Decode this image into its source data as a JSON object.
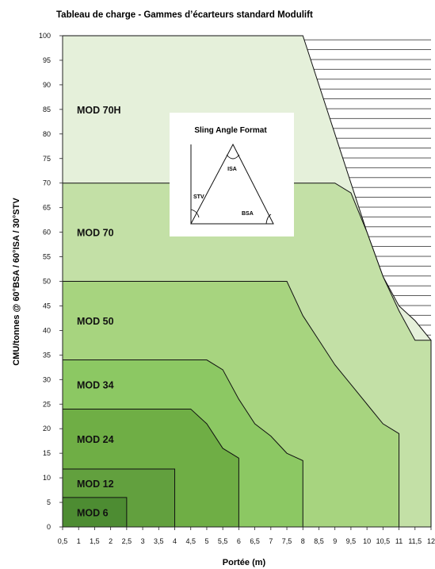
{
  "chart_data": {
    "type": "area",
    "title": "Tableau de charge - Gammes d’écarteurs standard Modulift",
    "xlabel": "Portée (m)",
    "ylabel": "CMU/tonnes @ 60°BSA / 60°ISA / 30°STV",
    "x_ticks": [
      "0,5",
      "1",
      "1,5",
      "2",
      "2,5",
      "3",
      "3,5",
      "4",
      "4,5",
      "5",
      "5,5",
      "6",
      "6,5",
      "7",
      "7,5",
      "8",
      "8,5",
      "9",
      "9,5",
      "10",
      "10,5",
      "11",
      "11,5",
      "12"
    ],
    "y_ticks": [
      "0",
      "5",
      "10",
      "15",
      "20",
      "25",
      "30",
      "35",
      "40",
      "45",
      "50",
      "55",
      "60",
      "65",
      "70",
      "75",
      "80",
      "85",
      "90",
      "95",
      "100"
    ],
    "xlim": [
      0.5,
      12
    ],
    "ylim": [
      0,
      100
    ],
    "grid": false,
    "hatched_region": "beyond MOD 70H capacity curve",
    "series": [
      {
        "name": "MOD 70H",
        "color": "#e5f0da",
        "points": [
          [
            0.5,
            100
          ],
          [
            8.0,
            100
          ],
          [
            8.5,
            90
          ],
          [
            9.0,
            80
          ],
          [
            9.5,
            70
          ],
          [
            10.0,
            60
          ],
          [
            10.5,
            51
          ],
          [
            11.0,
            45
          ],
          [
            11.5,
            42
          ],
          [
            12.0,
            38
          ],
          [
            12.0,
            0
          ]
        ]
      },
      {
        "name": "MOD 70",
        "color": "#c3e0a6",
        "points": [
          [
            0.5,
            70
          ],
          [
            9.0,
            70
          ],
          [
            9.5,
            68
          ],
          [
            10.0,
            60
          ],
          [
            10.5,
            51
          ],
          [
            11.0,
            44
          ],
          [
            11.5,
            38
          ],
          [
            12.0,
            38
          ],
          [
            12.0,
            0
          ]
        ]
      },
      {
        "name": "MOD 50",
        "color": "#a7d47f",
        "points": [
          [
            0.5,
            50
          ],
          [
            7.5,
            50
          ],
          [
            8.0,
            43
          ],
          [
            8.5,
            38
          ],
          [
            9.0,
            33
          ],
          [
            9.5,
            29
          ],
          [
            10.0,
            25
          ],
          [
            10.5,
            21
          ],
          [
            11.0,
            19
          ],
          [
            11.0,
            0
          ]
        ]
      },
      {
        "name": "MOD 34",
        "color": "#8cc863",
        "points": [
          [
            0.5,
            34
          ],
          [
            5.0,
            34
          ],
          [
            5.5,
            32
          ],
          [
            6.0,
            26
          ],
          [
            6.5,
            21
          ],
          [
            7.0,
            18.5
          ],
          [
            7.5,
            15
          ],
          [
            8.0,
            13.5
          ],
          [
            8.0,
            0
          ]
        ]
      },
      {
        "name": "MOD 24",
        "color": "#6fae45",
        "points": [
          [
            0.5,
            24
          ],
          [
            4.5,
            24
          ],
          [
            5.0,
            21
          ],
          [
            5.5,
            16
          ],
          [
            6.0,
            14
          ],
          [
            6.0,
            0
          ]
        ]
      },
      {
        "name": "MOD 12",
        "color": "#62a03e",
        "points": [
          [
            0.5,
            11.8
          ],
          [
            4.0,
            11.8
          ],
          [
            4.0,
            0
          ]
        ]
      },
      {
        "name": "MOD 6",
        "color": "#4d8c32",
        "points": [
          [
            0.5,
            6
          ],
          [
            2.5,
            6
          ],
          [
            2.5,
            0
          ]
        ]
      }
    ],
    "inset": {
      "title": "Sling Angle Format",
      "labels": [
        "ISA",
        "STV",
        "BSA"
      ]
    }
  }
}
